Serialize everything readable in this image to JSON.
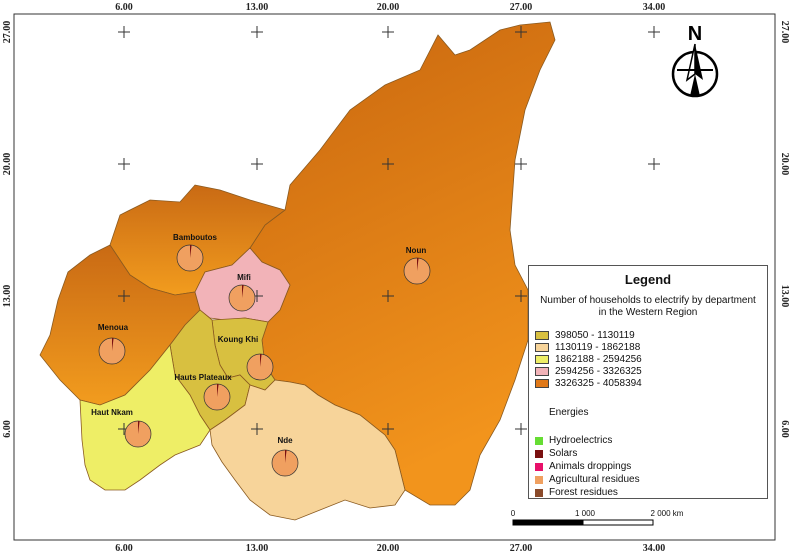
{
  "coords": {
    "top": [
      "6.00",
      "13.00",
      "20.00",
      "27.00",
      "34.00"
    ],
    "bottom": [
      "6.00",
      "13.00",
      "20.00",
      "27.00",
      "34.00"
    ],
    "left": [
      "27.00",
      "20.00",
      "13.00",
      "6.00"
    ],
    "right": [
      "27.00",
      "20.00",
      "13.00",
      "6.00"
    ]
  },
  "north": {
    "label": "N"
  },
  "departments": [
    {
      "name": "Bamboutos",
      "class": 5
    },
    {
      "name": "Mifi",
      "class": 4
    },
    {
      "name": "Noun",
      "class": 5
    },
    {
      "name": "Menoua",
      "class": 5
    },
    {
      "name": "Koung Khi",
      "class": 1
    },
    {
      "name": "Hauts Plateaux",
      "class": 1
    },
    {
      "name": "Haut Nkam",
      "class": 3
    },
    {
      "name": "Nde",
      "class": 2
    }
  ],
  "legend": {
    "title": "Legend",
    "subtitle": "Number of households to electrify by department in the Western Region",
    "classes": [
      {
        "label": "398050 - 1130119",
        "color": "#d8c040"
      },
      {
        "label": "1130119 - 1862188",
        "color": "#f7d49a"
      },
      {
        "label": "1862188 - 2594256",
        "color": "#eeee66"
      },
      {
        "label": "2594256 - 3326325",
        "color": "#f2b3b8"
      },
      {
        "label": "3326325 - 4058394",
        "color": "#e07818"
      }
    ],
    "energies_title": "Energies",
    "energies": [
      {
        "label": "Hydroelectrics",
        "color": "#66dd33"
      },
      {
        "label": "Solars",
        "color": "#7a1010"
      },
      {
        "label": "Animals droppings",
        "color": "#e8106a"
      },
      {
        "label": "Agricultural residues",
        "color": "#f0a060"
      },
      {
        "label": "Forest residues",
        "color": "#8a4a2a"
      }
    ]
  },
  "scale": {
    "labels": [
      "0",
      "1 000",
      "2 000 km"
    ]
  }
}
